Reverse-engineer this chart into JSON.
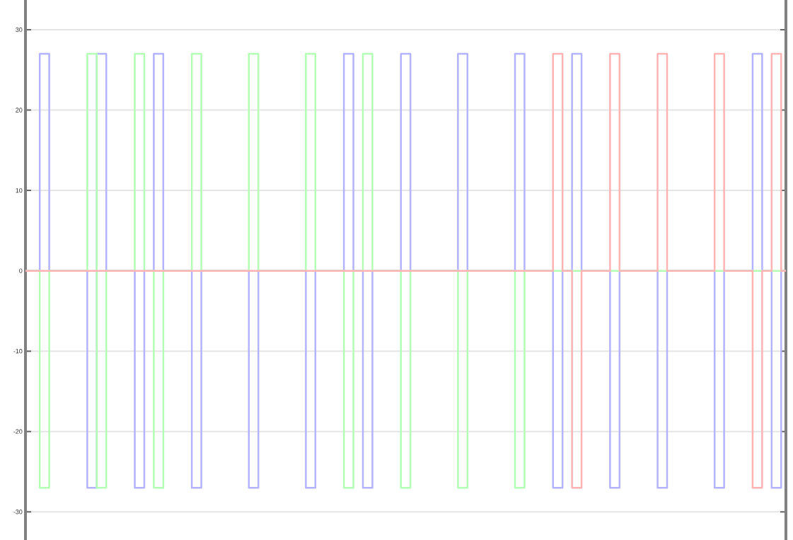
{
  "chart_data": {
    "type": "step",
    "categories": [
      null,
      null,
      null,
      null,
      null,
      null,
      null,
      null,
      null,
      null,
      null,
      null,
      null,
      null,
      null,
      null,
      null,
      null,
      null,
      null,
      null,
      null,
      null,
      null,
      null,
      null,
      null,
      null,
      null,
      null,
      null,
      null,
      null,
      null,
      null,
      null,
      null,
      null,
      null,
      null,
      null,
      null,
      null,
      null,
      null,
      null,
      null,
      null,
      null,
      null,
      null,
      null,
      null,
      null,
      null,
      null,
      null,
      null,
      null,
      null,
      null,
      null,
      null,
      null,
      null,
      null,
      null,
      null,
      null,
      null,
      null,
      null,
      null,
      null,
      null,
      null,
      null,
      null,
      null,
      null,
      null
    ],
    "ylim": [
      -33.5,
      33.7
    ],
    "yticks": [
      -30,
      -20,
      -10,
      0,
      10,
      20,
      30
    ],
    "grid": "y",
    "line_style": "solid",
    "marker": "none",
    "series": [
      {
        "color": "#b3b3ff",
        "values": [
          0,
          0,
          27,
          0,
          0,
          0,
          0,
          -27,
          27,
          0,
          0,
          0,
          -27,
          0,
          27,
          0,
          0,
          0,
          -27,
          0,
          0,
          0,
          0,
          0,
          -27,
          0,
          0,
          0,
          0,
          0,
          -27,
          0,
          0,
          0,
          27,
          0,
          -27,
          0,
          0,
          0,
          27,
          0,
          0,
          0,
          0,
          0,
          27,
          0,
          0,
          0,
          0,
          0,
          27,
          0,
          0,
          0,
          -27,
          0,
          27,
          0,
          0,
          0,
          -27,
          0,
          0,
          0,
          0,
          -27,
          0,
          0,
          0,
          0,
          0,
          -27,
          0,
          0,
          0,
          27,
          0,
          -27,
          0
        ]
      },
      {
        "color": "#b3ffb3",
        "values": [
          0,
          0,
          -27,
          0,
          0,
          0,
          0,
          27,
          -27,
          0,
          0,
          0,
          27,
          0,
          -27,
          0,
          0,
          0,
          27,
          0,
          0,
          0,
          0,
          0,
          27,
          0,
          0,
          0,
          0,
          0,
          27,
          0,
          0,
          0,
          -27,
          0,
          27,
          0,
          0,
          0,
          -27,
          0,
          0,
          0,
          0,
          0,
          -27,
          0,
          0,
          0,
          0,
          0,
          -27,
          0,
          0,
          0,
          0,
          0,
          0,
          0,
          0,
          0,
          0,
          0,
          0,
          0,
          0,
          0,
          0,
          0,
          0,
          0,
          0,
          0,
          0,
          0,
          0,
          0,
          0,
          0,
          0
        ]
      },
      {
        "color": "#ffb3b3",
        "values": [
          0,
          0,
          0,
          0,
          0,
          0,
          0,
          0,
          0,
          0,
          0,
          0,
          0,
          0,
          0,
          0,
          0,
          0,
          0,
          0,
          0,
          0,
          0,
          0,
          0,
          0,
          0,
          0,
          0,
          0,
          0,
          0,
          0,
          0,
          0,
          0,
          0,
          0,
          0,
          0,
          0,
          0,
          0,
          0,
          0,
          0,
          0,
          0,
          0,
          0,
          0,
          0,
          0,
          0,
          0,
          0,
          27,
          0,
          -27,
          0,
          0,
          0,
          27,
          0,
          0,
          0,
          0,
          27,
          0,
          0,
          0,
          0,
          0,
          27,
          0,
          0,
          0,
          -27,
          0,
          27,
          0
        ]
      }
    ]
  }
}
